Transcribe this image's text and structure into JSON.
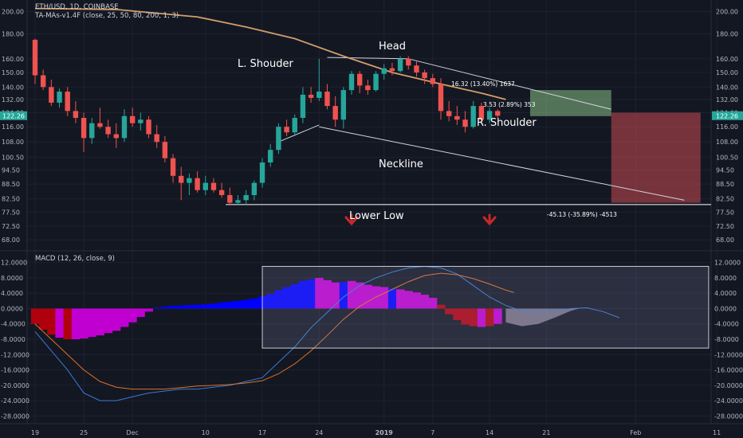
{
  "header": {
    "symbol_line": "ETH/USD, 1D, COINBASE",
    "indicator_line": "TA-MAs-v1.4F (close, 25, 50, 80, 200, 1, 3)",
    "macd_line": "MACD (12, 26, close, 9)"
  },
  "colors": {
    "background": "#131722",
    "grid": "#1e2230",
    "bull": "#26a69a",
    "bear": "#ef5350",
    "ma_line": "#d39e6a",
    "macd_line": "#3a7bd5",
    "signal_line": "#e0702a",
    "hist_blue": "#0000ff",
    "hist_magenta": "#c000d0",
    "hist_red": "#b0000e",
    "price_label": "#26a69a"
  },
  "chart_data": [
    {
      "type": "candlestick",
      "title": "ETH/USD, 1D, COINBASE",
      "scale": "log",
      "y_ticks": [
        200,
        180,
        160,
        150,
        140,
        132,
        124,
        116,
        108,
        100.5,
        94.5,
        88.5,
        82.5,
        77.5,
        72.5,
        68
      ],
      "y_tick_labels": [
        "200.00",
        "180.00",
        "160.00",
        "150.00",
        "140.00",
        "132.00",
        "124.00",
        "116.00",
        "108.00",
        "100.50",
        "94.50",
        "88.50",
        "82.50",
        "77.50",
        "72.50",
        "68.00"
      ],
      "ylim": [
        66.5,
        205
      ],
      "current_price": 122.26,
      "current_price_label": "122.26",
      "x_ticks": [
        {
          "day": 0,
          "label": "19"
        },
        {
          "day": 6,
          "label": "25"
        },
        {
          "day": 12,
          "label": "Dec"
        },
        {
          "day": 21,
          "label": "10"
        },
        {
          "day": 28,
          "label": "17"
        },
        {
          "day": 35,
          "label": "24"
        },
        {
          "day": 43,
          "label": "2019"
        },
        {
          "day": 49,
          "label": "7"
        },
        {
          "day": 56,
          "label": "14"
        },
        {
          "day": 63,
          "label": "21"
        },
        {
          "day": 74,
          "label": "Feb"
        },
        {
          "day": 84,
          "label": "11"
        }
      ],
      "candles": [
        [
          175,
          176,
          142,
          148
        ],
        [
          148,
          152,
          138,
          140
        ],
        [
          140,
          145,
          128,
          130
        ],
        [
          130,
          139,
          127,
          137
        ],
        [
          137,
          140,
          122,
          125
        ],
        [
          125,
          131,
          118,
          121
        ],
        [
          121,
          124,
          103,
          110
        ],
        [
          110,
          121,
          107,
          118
        ],
        [
          118,
          127,
          115,
          116
        ],
        [
          116,
          120,
          110,
          112
        ],
        [
          112,
          118,
          105,
          110
        ],
        [
          110,
          126,
          108,
          122
        ],
        [
          122,
          127,
          116,
          118
        ],
        [
          118,
          124,
          114,
          120
        ],
        [
          120,
          122,
          110,
          112
        ],
        [
          112,
          117,
          105,
          108
        ],
        [
          108,
          111,
          98,
          100
        ],
        [
          100,
          102,
          89,
          92
        ],
        [
          92,
          96,
          82,
          89
        ],
        [
          89,
          93,
          84,
          91
        ],
        [
          91,
          94,
          85,
          86
        ],
        [
          86,
          92,
          84,
          89
        ],
        [
          89,
          91,
          85,
          86
        ],
        [
          86,
          89,
          83,
          84
        ],
        [
          84,
          87,
          80,
          81
        ],
        [
          81,
          84,
          80,
          82
        ],
        [
          82,
          86,
          80,
          84
        ],
        [
          84,
          90,
          82,
          89
        ],
        [
          89,
          100,
          87,
          98
        ],
        [
          98,
          107,
          96,
          104
        ],
        [
          104,
          118,
          102,
          116
        ],
        [
          116,
          120,
          111,
          113
        ],
        [
          113,
          123,
          111,
          121
        ],
        [
          121,
          140,
          118,
          135
        ],
        [
          135,
          140,
          130,
          133
        ],
        [
          133,
          160,
          131,
          137
        ],
        [
          137,
          142,
          126,
          128
        ],
        [
          128,
          134,
          116,
          120
        ],
        [
          120,
          140,
          115,
          138
        ],
        [
          138,
          151,
          135,
          149
        ],
        [
          149,
          151,
          136,
          141
        ],
        [
          141,
          145,
          135,
          138
        ],
        [
          138,
          151,
          137,
          149
        ],
        [
          149,
          156,
          145,
          153
        ],
        [
          153,
          157,
          148,
          151
        ],
        [
          151,
          162,
          150,
          160
        ],
        [
          160,
          162,
          152,
          155
        ],
        [
          155,
          158,
          147,
          150
        ],
        [
          150,
          152,
          142,
          146
        ],
        [
          146,
          149,
          140,
          142
        ],
        [
          142,
          146,
          120,
          125
        ],
        [
          125,
          131,
          119,
          122
        ],
        [
          122,
          128,
          117,
          120
        ],
        [
          120,
          125,
          113,
          116
        ],
        [
          116,
          131,
          115,
          128
        ],
        [
          128,
          130,
          118,
          120
        ],
        [
          120,
          127,
          118,
          125
        ],
        [
          125,
          126,
          121,
          122.26
        ]
      ],
      "moving_average": [
        [
          0,
          203
        ],
        [
          10,
          202
        ],
        [
          20,
          195
        ],
        [
          26,
          186
        ],
        [
          32,
          176
        ],
        [
          38,
          162
        ],
        [
          44,
          150
        ],
        [
          50,
          142
        ],
        [
          55,
          136
        ],
        [
          58,
          132
        ]
      ],
      "annotations": {
        "head": "Head",
        "left_shoulder": "L. Shouder",
        "right_shoulder": "R. Shoulder",
        "neckline": "Neckline",
        "lower_low": "Lower Low",
        "measure_upper": "16.32 (13.40%) 1637",
        "measure_lower": "3.53 (2.89%) 353",
        "measure_target": "-45.13 (-35.89%) -4513"
      },
      "neckline": {
        "from": [
          35,
          116
        ],
        "to": [
          80,
          82
        ]
      },
      "head_trendline": [
        [
          36,
          161
        ],
        [
          46,
          160
        ],
        [
          71,
          126
        ]
      ],
      "left_shoulder_line": [
        [
          35,
          117
        ],
        [
          30,
          108
        ]
      ],
      "target_box": {
        "from_day": 71,
        "to_day": 82,
        "from_price": 124,
        "to_price": 81
      },
      "lower_low_level": 80.3,
      "lower_low_arrows_days": [
        39,
        56
      ],
      "measure_box": {
        "from_day": 61,
        "to_day": 71,
        "from_price": 122,
        "to_price": 138
      }
    },
    {
      "type": "macd",
      "title": "MACD (12, 26, close, 9)",
      "y_ticks": [
        12,
        8,
        4,
        0,
        -4,
        -8,
        -12,
        -16,
        -20,
        -24,
        -28
      ],
      "y_tick_labels": [
        "12.0000",
        "8.0000",
        "4.0000",
        "0.0000",
        "-4.0000",
        "-8.0000",
        "-12.0000",
        "-16.0000",
        "-20.0000",
        "-24.0000",
        "-28.0000"
      ],
      "ylim": [
        -30,
        14
      ],
      "histogram": [
        [
          -4,
          "hist_red"
        ],
        [
          -5.5,
          "hist_red"
        ],
        [
          -6.8,
          "hist_red"
        ],
        [
          -7.6,
          "hist_magenta"
        ],
        [
          -8,
          "hist_red"
        ],
        [
          -8,
          "hist_magenta"
        ],
        [
          -7.8,
          "hist_magenta"
        ],
        [
          -7.4,
          "hist_magenta"
        ],
        [
          -7,
          "hist_magenta"
        ],
        [
          -6.4,
          "hist_magenta"
        ],
        [
          -5.8,
          "hist_magenta"
        ],
        [
          -4.8,
          "hist_magenta"
        ],
        [
          -3.6,
          "hist_magenta"
        ],
        [
          -2.2,
          "hist_magenta"
        ],
        [
          -0.8,
          "hist_magenta"
        ],
        [
          0.2,
          "hist_blue"
        ],
        [
          0.5,
          "hist_blue"
        ],
        [
          0.7,
          "hist_blue"
        ],
        [
          0.8,
          "hist_blue"
        ],
        [
          0.9,
          "hist_blue"
        ],
        [
          1,
          "hist_blue"
        ],
        [
          1.1,
          "hist_blue"
        ],
        [
          1.3,
          "hist_blue"
        ],
        [
          1.6,
          "hist_blue"
        ],
        [
          1.8,
          "hist_blue"
        ],
        [
          2,
          "hist_blue"
        ],
        [
          2.3,
          "hist_blue"
        ],
        [
          2.6,
          "hist_blue"
        ],
        [
          3.2,
          "hist_blue"
        ],
        [
          3.8,
          "hist_blue"
        ],
        [
          4.8,
          "hist_blue"
        ],
        [
          5.6,
          "hist_blue"
        ],
        [
          6.4,
          "hist_blue"
        ],
        [
          7.2,
          "hist_blue"
        ],
        [
          7.6,
          "hist_blue"
        ],
        [
          8,
          "hist_magenta"
        ],
        [
          7.4,
          "hist_magenta"
        ],
        [
          6.8,
          "hist_magenta"
        ],
        [
          6.9,
          "hist_blue"
        ],
        [
          7.2,
          "hist_magenta"
        ],
        [
          6.8,
          "hist_magenta"
        ],
        [
          6.2,
          "hist_magenta"
        ],
        [
          5.8,
          "hist_magenta"
        ],
        [
          5.6,
          "hist_magenta"
        ],
        [
          5.2,
          "hist_blue"
        ],
        [
          5,
          "hist_magenta"
        ],
        [
          4.6,
          "hist_magenta"
        ],
        [
          4.2,
          "hist_magenta"
        ],
        [
          3.6,
          "hist_magenta"
        ],
        [
          2.8,
          "hist_magenta"
        ],
        [
          1,
          "hist_red"
        ],
        [
          -1.5,
          "hist_red"
        ],
        [
          -3,
          "hist_red"
        ],
        [
          -4.2,
          "hist_red"
        ],
        [
          -4.6,
          "hist_red"
        ],
        [
          -4.8,
          "hist_magenta"
        ],
        [
          -4.6,
          "hist_red"
        ],
        [
          -4,
          "hist_magenta"
        ]
      ],
      "histogram_projection": [
        [
          58,
          -3.6
        ],
        [
          60,
          -4.6
        ],
        [
          62,
          -4
        ],
        [
          64,
          -2.4
        ],
        [
          66,
          -0.6
        ],
        [
          67,
          0
        ]
      ],
      "macd": [
        [
          0,
          -6
        ],
        [
          2,
          -11
        ],
        [
          4,
          -16
        ],
        [
          6,
          -22
        ],
        [
          8,
          -24
        ],
        [
          10,
          -24
        ],
        [
          12,
          -23
        ],
        [
          14,
          -22
        ],
        [
          16,
          -21.5
        ],
        [
          18,
          -21
        ],
        [
          20,
          -21
        ],
        [
          22,
          -20.5
        ],
        [
          24,
          -20
        ],
        [
          26,
          -19
        ],
        [
          28,
          -18
        ],
        [
          30,
          -14
        ],
        [
          32,
          -10
        ],
        [
          34,
          -5
        ],
        [
          36,
          -1
        ],
        [
          38,
          3
        ],
        [
          40,
          6
        ],
        [
          42,
          8
        ],
        [
          44,
          9.5
        ],
        [
          46,
          10.6
        ],
        [
          48,
          11
        ],
        [
          50,
          10.6
        ],
        [
          52,
          9
        ],
        [
          54,
          6
        ],
        [
          56,
          3
        ],
        [
          58,
          0.8
        ],
        [
          60,
          -0.6
        ],
        [
          62,
          -1
        ],
        [
          64,
          -0.6
        ],
        [
          66,
          0
        ],
        [
          68,
          0.2
        ],
        [
          70,
          -0.8
        ],
        [
          72,
          -2.4
        ]
      ],
      "signal": [
        [
          0,
          -4
        ],
        [
          2,
          -8
        ],
        [
          4,
          -12
        ],
        [
          6,
          -16
        ],
        [
          8,
          -19
        ],
        [
          10,
          -20.5
        ],
        [
          12,
          -21
        ],
        [
          14,
          -21
        ],
        [
          16,
          -21
        ],
        [
          18,
          -20.6
        ],
        [
          20,
          -20.2
        ],
        [
          22,
          -20
        ],
        [
          24,
          -19.8
        ],
        [
          26,
          -19.4
        ],
        [
          28,
          -18.8
        ],
        [
          30,
          -17
        ],
        [
          32,
          -14.4
        ],
        [
          34,
          -11
        ],
        [
          36,
          -7
        ],
        [
          38,
          -2.8
        ],
        [
          40,
          0.6
        ],
        [
          42,
          3
        ],
        [
          44,
          5
        ],
        [
          46,
          7
        ],
        [
          48,
          8.6
        ],
        [
          50,
          9.2
        ],
        [
          52,
          8.8
        ],
        [
          54,
          7.8
        ],
        [
          56,
          6.4
        ],
        [
          58,
          4.8
        ],
        [
          59,
          4.2
        ]
      ],
      "highlight_box": {
        "from_day": 28,
        "to_day": 83,
        "from_value": 11,
        "to_value": -10.3
      }
    }
  ]
}
